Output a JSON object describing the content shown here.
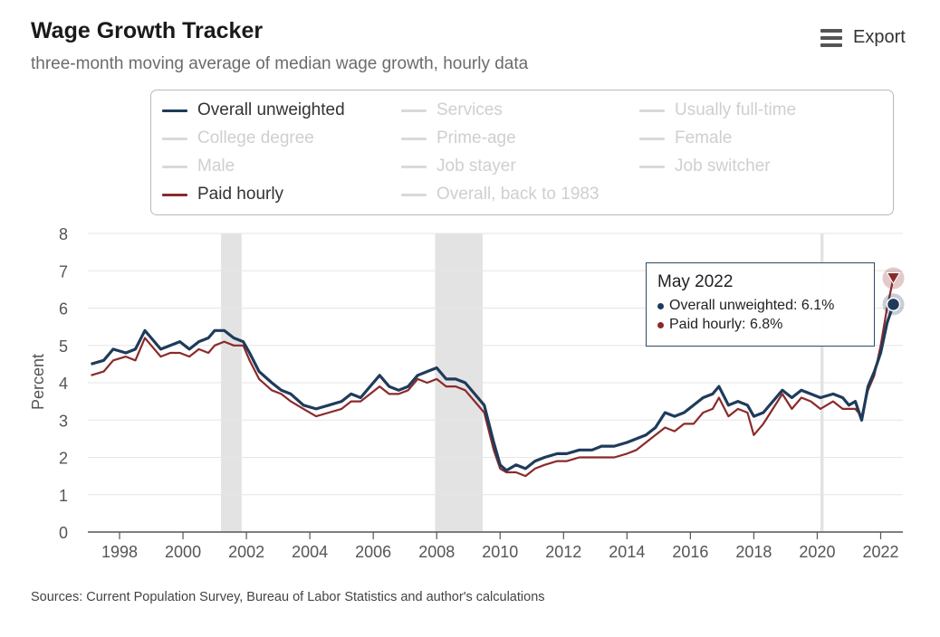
{
  "header": {
    "title": "Wage Growth Tracker",
    "subtitle": "three-month moving average of median wage growth, hourly data",
    "export_label": "Export"
  },
  "legend": {
    "items": [
      {
        "label": "Overall unweighted",
        "active": true,
        "color": "#1f3b5a"
      },
      {
        "label": "Services",
        "active": false
      },
      {
        "label": "Usually full-time",
        "active": false
      },
      {
        "label": "College degree",
        "active": false
      },
      {
        "label": "Prime-age",
        "active": false
      },
      {
        "label": "Female",
        "active": false
      },
      {
        "label": "Male",
        "active": false
      },
      {
        "label": "Job stayer",
        "active": false
      },
      {
        "label": "Job switcher",
        "active": false
      },
      {
        "label": "Paid hourly",
        "active": true,
        "color": "#8b2a2a"
      },
      {
        "label": "Overall, back to 1983",
        "active": false
      }
    ]
  },
  "tooltip": {
    "title": "May 2022",
    "row1": "Overall unweighted: 6.1%",
    "row2": "Paid hourly: 6.8%"
  },
  "sources": "Sources: Current Population Survey, Bureau of Labor Statistics and author's calculations",
  "chart_data": {
    "type": "line",
    "title": "Wage Growth Tracker",
    "ylabel": "Percent",
    "xlabel": "",
    "xlim": [
      1997,
      2022.7
    ],
    "ylim": [
      0,
      8
    ],
    "yticks": [
      "0",
      "1",
      "2",
      "3",
      "4",
      "5",
      "6",
      "7",
      "8"
    ],
    "xticks": [
      "1998",
      "2000",
      "2002",
      "2004",
      "2006",
      "2008",
      "2010",
      "2012",
      "2014",
      "2016",
      "2018",
      "2020",
      "2022"
    ],
    "grid": true,
    "recessions": [
      [
        2001.2,
        2001.85
      ],
      [
        2007.95,
        2009.45
      ],
      [
        2020.1,
        2020.2
      ]
    ],
    "series": [
      {
        "name": "Overall unweighted",
        "color": "#1f3b5a",
        "points": [
          [
            1997.1,
            4.5
          ],
          [
            1997.5,
            4.6
          ],
          [
            1997.8,
            4.9
          ],
          [
            1998.2,
            4.8
          ],
          [
            1998.5,
            4.9
          ],
          [
            1998.8,
            5.4
          ],
          [
            1999.0,
            5.2
          ],
          [
            1999.3,
            4.9
          ],
          [
            1999.6,
            5.0
          ],
          [
            1999.9,
            5.1
          ],
          [
            2000.2,
            4.9
          ],
          [
            2000.5,
            5.1
          ],
          [
            2000.8,
            5.2
          ],
          [
            2001.0,
            5.4
          ],
          [
            2001.3,
            5.4
          ],
          [
            2001.6,
            5.2
          ],
          [
            2001.9,
            5.1
          ],
          [
            2002.1,
            4.8
          ],
          [
            2002.4,
            4.3
          ],
          [
            2002.8,
            4.0
          ],
          [
            2003.1,
            3.8
          ],
          [
            2003.4,
            3.7
          ],
          [
            2003.8,
            3.4
          ],
          [
            2004.2,
            3.3
          ],
          [
            2004.6,
            3.4
          ],
          [
            2005.0,
            3.5
          ],
          [
            2005.3,
            3.7
          ],
          [
            2005.6,
            3.6
          ],
          [
            2005.9,
            3.9
          ],
          [
            2006.2,
            4.2
          ],
          [
            2006.5,
            3.9
          ],
          [
            2006.8,
            3.8
          ],
          [
            2007.1,
            3.9
          ],
          [
            2007.4,
            4.2
          ],
          [
            2007.7,
            4.3
          ],
          [
            2008.0,
            4.4
          ],
          [
            2008.3,
            4.1
          ],
          [
            2008.6,
            4.1
          ],
          [
            2008.9,
            4.0
          ],
          [
            2009.2,
            3.7
          ],
          [
            2009.5,
            3.4
          ],
          [
            2009.8,
            2.4
          ],
          [
            2010.0,
            1.8
          ],
          [
            2010.2,
            1.65
          ],
          [
            2010.5,
            1.8
          ],
          [
            2010.8,
            1.7
          ],
          [
            2011.1,
            1.9
          ],
          [
            2011.4,
            2.0
          ],
          [
            2011.8,
            2.1
          ],
          [
            2012.1,
            2.1
          ],
          [
            2012.5,
            2.2
          ],
          [
            2012.9,
            2.2
          ],
          [
            2013.2,
            2.3
          ],
          [
            2013.6,
            2.3
          ],
          [
            2014.0,
            2.4
          ],
          [
            2014.3,
            2.5
          ],
          [
            2014.6,
            2.6
          ],
          [
            2014.9,
            2.8
          ],
          [
            2015.2,
            3.2
          ],
          [
            2015.5,
            3.1
          ],
          [
            2015.8,
            3.2
          ],
          [
            2016.1,
            3.4
          ],
          [
            2016.4,
            3.6
          ],
          [
            2016.7,
            3.7
          ],
          [
            2016.9,
            3.9
          ],
          [
            2017.2,
            3.4
          ],
          [
            2017.5,
            3.5
          ],
          [
            2017.8,
            3.4
          ],
          [
            2018.0,
            3.1
          ],
          [
            2018.3,
            3.2
          ],
          [
            2018.6,
            3.5
          ],
          [
            2018.9,
            3.8
          ],
          [
            2019.2,
            3.6
          ],
          [
            2019.5,
            3.8
          ],
          [
            2019.8,
            3.7
          ],
          [
            2020.1,
            3.6
          ],
          [
            2020.5,
            3.7
          ],
          [
            2020.8,
            3.6
          ],
          [
            2021.0,
            3.4
          ],
          [
            2021.2,
            3.5
          ],
          [
            2021.4,
            3.0
          ],
          [
            2021.6,
            3.9
          ],
          [
            2021.8,
            4.3
          ],
          [
            2022.0,
            4.8
          ],
          [
            2022.2,
            5.6
          ],
          [
            2022.4,
            6.1
          ]
        ]
      },
      {
        "name": "Paid hourly",
        "color": "#8b2a2a",
        "points": [
          [
            1997.1,
            4.2
          ],
          [
            1997.5,
            4.3
          ],
          [
            1997.8,
            4.6
          ],
          [
            1998.2,
            4.7
          ],
          [
            1998.5,
            4.6
          ],
          [
            1998.8,
            5.2
          ],
          [
            1999.0,
            5.0
          ],
          [
            1999.3,
            4.7
          ],
          [
            1999.6,
            4.8
          ],
          [
            1999.9,
            4.8
          ],
          [
            2000.2,
            4.7
          ],
          [
            2000.5,
            4.9
          ],
          [
            2000.8,
            4.8
          ],
          [
            2001.0,
            5.0
          ],
          [
            2001.3,
            5.1
          ],
          [
            2001.6,
            5.0
          ],
          [
            2001.9,
            5.0
          ],
          [
            2002.1,
            4.6
          ],
          [
            2002.4,
            4.1
          ],
          [
            2002.8,
            3.8
          ],
          [
            2003.1,
            3.7
          ],
          [
            2003.4,
            3.5
          ],
          [
            2003.8,
            3.3
          ],
          [
            2004.2,
            3.1
          ],
          [
            2004.6,
            3.2
          ],
          [
            2005.0,
            3.3
          ],
          [
            2005.3,
            3.5
          ],
          [
            2005.6,
            3.5
          ],
          [
            2005.9,
            3.7
          ],
          [
            2006.2,
            3.9
          ],
          [
            2006.5,
            3.7
          ],
          [
            2006.8,
            3.7
          ],
          [
            2007.1,
            3.8
          ],
          [
            2007.4,
            4.1
          ],
          [
            2007.7,
            4.0
          ],
          [
            2008.0,
            4.1
          ],
          [
            2008.3,
            3.9
          ],
          [
            2008.6,
            3.9
          ],
          [
            2008.9,
            3.8
          ],
          [
            2009.2,
            3.5
          ],
          [
            2009.5,
            3.2
          ],
          [
            2009.8,
            2.2
          ],
          [
            2010.0,
            1.7
          ],
          [
            2010.2,
            1.6
          ],
          [
            2010.5,
            1.6
          ],
          [
            2010.8,
            1.5
          ],
          [
            2011.1,
            1.7
          ],
          [
            2011.4,
            1.8
          ],
          [
            2011.8,
            1.9
          ],
          [
            2012.1,
            1.9
          ],
          [
            2012.5,
            2.0
          ],
          [
            2012.9,
            2.0
          ],
          [
            2013.2,
            2.0
          ],
          [
            2013.6,
            2.0
          ],
          [
            2014.0,
            2.1
          ],
          [
            2014.3,
            2.2
          ],
          [
            2014.6,
            2.4
          ],
          [
            2014.9,
            2.6
          ],
          [
            2015.2,
            2.8
          ],
          [
            2015.5,
            2.7
          ],
          [
            2015.8,
            2.9
          ],
          [
            2016.1,
            2.9
          ],
          [
            2016.4,
            3.2
          ],
          [
            2016.7,
            3.3
          ],
          [
            2016.9,
            3.6
          ],
          [
            2017.2,
            3.1
          ],
          [
            2017.5,
            3.3
          ],
          [
            2017.8,
            3.2
          ],
          [
            2018.0,
            2.6
          ],
          [
            2018.3,
            2.9
          ],
          [
            2018.6,
            3.3
          ],
          [
            2018.9,
            3.7
          ],
          [
            2019.2,
            3.3
          ],
          [
            2019.5,
            3.6
          ],
          [
            2019.8,
            3.5
          ],
          [
            2020.1,
            3.3
          ],
          [
            2020.5,
            3.5
          ],
          [
            2020.8,
            3.3
          ],
          [
            2021.0,
            3.3
          ],
          [
            2021.2,
            3.3
          ],
          [
            2021.4,
            3.1
          ],
          [
            2021.6,
            3.8
          ],
          [
            2021.8,
            4.2
          ],
          [
            2022.0,
            5.0
          ],
          [
            2022.2,
            6.0
          ],
          [
            2022.4,
            6.8
          ]
        ]
      }
    ],
    "annotations": [
      {
        "x": 2022.4,
        "series": "Overall unweighted",
        "value": 6.1
      },
      {
        "x": 2022.4,
        "series": "Paid hourly",
        "value": 6.8
      }
    ]
  }
}
